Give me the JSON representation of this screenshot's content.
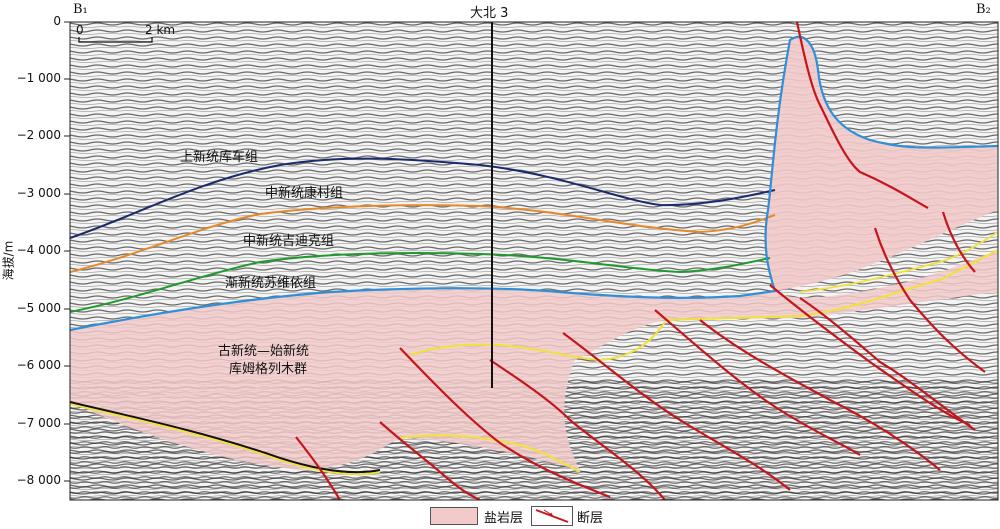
{
  "colors": {
    "salt": "#f2caca",
    "fault": "#c4161c",
    "upper_neogene": "#1b2a6b",
    "middle_kangcun": "#e58a2c",
    "middle_jidike": "#1e9a2e",
    "suweiyi": "#2f8fd8",
    "salt_base": "#f0e23a"
  },
  "section": {
    "left_end": "B₁",
    "right_end": "B₂",
    "well": "大北 3",
    "scale_zero": "0",
    "scale_label": "2 km"
  },
  "axis": {
    "ylabel": "海拔/m",
    "ticks": [
      "0",
      "−1 000",
      "−2 000",
      "−3 000",
      "−4 000",
      "−5 000",
      "−6 000",
      "−7 000",
      "−8 000"
    ]
  },
  "formations": {
    "kuche": "上新统库车组",
    "kangcun": "中新统康村组",
    "jidike": "中新统吉迪克组",
    "suweiyi": "渐新统苏维依组",
    "kumugeliemu_1": "古新统—始新统",
    "kumugeliemu_2": "库姆格列木群"
  },
  "legend": {
    "salt": "盐岩层",
    "fault": "断层"
  }
}
